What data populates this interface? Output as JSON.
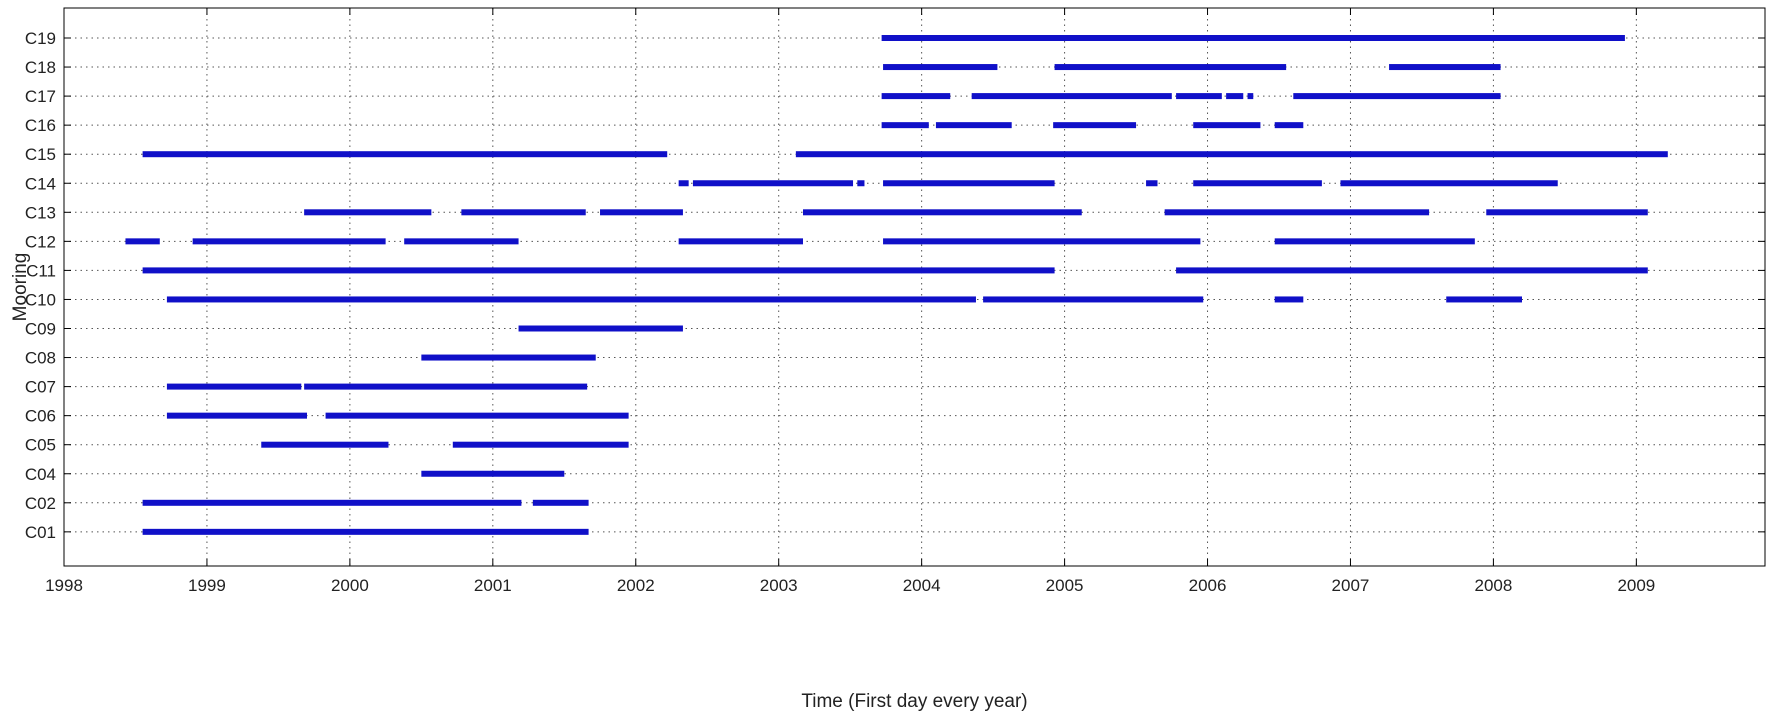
{
  "chart_data": {
    "type": "timeline",
    "title": "",
    "xlabel": "Time (First day every year)",
    "ylabel": "Mooring",
    "xlim": [
      1998,
      2009.9
    ],
    "x_ticks": [
      "1998",
      "1999",
      "2000",
      "2001",
      "2002",
      "2003",
      "2004",
      "2005",
      "2006",
      "2007",
      "2008",
      "2009"
    ],
    "grid": "dotted",
    "legend": "none",
    "colors": {
      "segment": "#1010c8",
      "grid": "#555555",
      "axis": "#000000"
    },
    "categories": [
      "C01",
      "C02",
      "C04",
      "C05",
      "C06",
      "C07",
      "C08",
      "C09",
      "C10",
      "C11",
      "C12",
      "C13",
      "C14",
      "C15",
      "C16",
      "C17",
      "C18",
      "C19"
    ],
    "series": [
      {
        "mooring": "C01",
        "segments": [
          [
            1998.55,
            2001.67
          ]
        ]
      },
      {
        "mooring": "C02",
        "segments": [
          [
            1998.55,
            2001.2
          ],
          [
            2001.28,
            2001.67
          ]
        ]
      },
      {
        "mooring": "C04",
        "segments": [
          [
            2000.5,
            2001.5
          ]
        ]
      },
      {
        "mooring": "C05",
        "segments": [
          [
            1999.38,
            2000.27
          ],
          [
            2000.72,
            2001.95
          ]
        ]
      },
      {
        "mooring": "C06",
        "segments": [
          [
            1998.72,
            1999.7
          ],
          [
            1999.83,
            2001.95
          ]
        ]
      },
      {
        "mooring": "C07",
        "segments": [
          [
            1998.72,
            1999.66
          ],
          [
            1999.68,
            2001.66
          ]
        ]
      },
      {
        "mooring": "C08",
        "segments": [
          [
            2000.5,
            2001.72
          ]
        ]
      },
      {
        "mooring": "C09",
        "segments": [
          [
            2001.18,
            2002.33
          ]
        ]
      },
      {
        "mooring": "C10",
        "segments": [
          [
            1998.72,
            2004.38
          ],
          [
            2004.43,
            2005.97
          ],
          [
            2006.47,
            2006.67
          ],
          [
            2007.67,
            2008.2
          ]
        ]
      },
      {
        "mooring": "C11",
        "segments": [
          [
            1998.55,
            2004.93
          ],
          [
            2005.78,
            2009.08
          ]
        ]
      },
      {
        "mooring": "C12",
        "segments": [
          [
            1998.43,
            1998.67
          ],
          [
            1998.9,
            2000.25
          ],
          [
            2000.38,
            2001.18
          ],
          [
            2002.3,
            2003.17
          ],
          [
            2003.73,
            2005.95
          ],
          [
            2006.47,
            2007.87
          ]
        ]
      },
      {
        "mooring": "C13",
        "segments": [
          [
            1999.68,
            2000.57
          ],
          [
            2000.78,
            2001.65
          ],
          [
            2001.75,
            2002.33
          ],
          [
            2003.17,
            2005.12
          ],
          [
            2005.7,
            2007.55
          ],
          [
            2007.95,
            2009.08
          ]
        ]
      },
      {
        "mooring": "C14",
        "segments": [
          [
            2002.3,
            2002.37
          ],
          [
            2002.4,
            2003.52
          ],
          [
            2003.55,
            2003.6
          ],
          [
            2003.73,
            2004.93
          ],
          [
            2005.57,
            2005.65
          ],
          [
            2005.9,
            2006.8
          ],
          [
            2006.93,
            2008.45
          ]
        ]
      },
      {
        "mooring": "C15",
        "segments": [
          [
            1998.55,
            2002.22
          ],
          [
            2003.12,
            2009.22
          ]
        ]
      },
      {
        "mooring": "C16",
        "segments": [
          [
            2003.72,
            2004.05
          ],
          [
            2004.1,
            2004.63
          ],
          [
            2004.92,
            2005.5
          ],
          [
            2005.9,
            2006.37
          ],
          [
            2006.47,
            2006.67
          ]
        ]
      },
      {
        "mooring": "C17",
        "segments": [
          [
            2003.72,
            2004.2
          ],
          [
            2004.35,
            2005.75
          ],
          [
            2005.78,
            2006.1
          ],
          [
            2006.13,
            2006.25
          ],
          [
            2006.28,
            2006.32
          ],
          [
            2006.6,
            2008.05
          ]
        ]
      },
      {
        "mooring": "C18",
        "segments": [
          [
            2003.73,
            2004.53
          ],
          [
            2004.93,
            2006.55
          ],
          [
            2007.27,
            2008.05
          ]
        ]
      },
      {
        "mooring": "C19",
        "segments": [
          [
            2003.72,
            2008.92
          ]
        ]
      }
    ]
  }
}
